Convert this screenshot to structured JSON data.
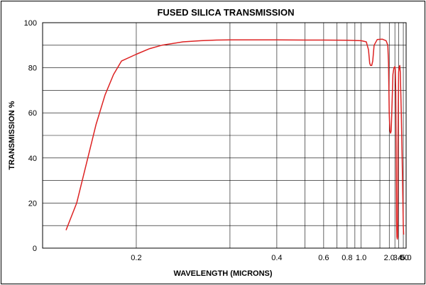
{
  "chart_data": {
    "type": "line",
    "title": "FUSED SILICA TRANSMISSION",
    "xlabel": "WAVELENGTH (MICRONS)",
    "ylabel": "TRANSMISSION %",
    "x_scale": "reciprocal",
    "xlim": [
      0.15,
      5.0
    ],
    "ylim": [
      0,
      100
    ],
    "x_ticks": [
      "0.2",
      "0.4",
      "0.6",
      "0.8",
      "1.0",
      "2.0",
      "3.0",
      "4.0",
      "5.0"
    ],
    "y_ticks": [
      "0",
      "20",
      "40",
      "60",
      "80",
      "100"
    ],
    "grid": true,
    "line_color": "#dd2222",
    "series": [
      {
        "x": [
          0.16,
          0.165,
          0.17,
          0.175,
          0.18,
          0.185,
          0.19,
          0.2,
          0.21,
          0.22,
          0.24,
          0.26,
          0.28,
          0.3,
          0.4,
          0.5,
          0.6,
          0.8,
          1.0,
          1.1,
          1.15,
          1.18,
          1.2,
          1.23,
          1.26,
          1.3,
          1.4,
          1.6,
          1.8,
          1.9,
          1.95,
          2.0,
          2.05,
          2.1,
          2.15,
          2.2,
          2.3,
          2.4,
          2.5,
          2.55,
          2.6,
          2.65,
          2.7,
          2.75,
          2.8,
          2.85,
          2.9,
          3.0,
          3.1,
          3.2,
          3.3,
          3.5,
          3.7,
          3.9,
          4.0,
          4.1
        ],
        "y": [
          8,
          20,
          38,
          55,
          68,
          77,
          83,
          86,
          88.5,
          90,
          91.5,
          92,
          92.3,
          92.4,
          92.4,
          92.3,
          92.3,
          92.2,
          92,
          91.5,
          88,
          82,
          81,
          81,
          83,
          90,
          92.5,
          92.7,
          92,
          90,
          82,
          60,
          52,
          51,
          52,
          60,
          77,
          80,
          80.5,
          79,
          70,
          40,
          12,
          5,
          4,
          5,
          45,
          78,
          80.5,
          81,
          78,
          60,
          40,
          20,
          10,
          6
        ]
      }
    ]
  }
}
